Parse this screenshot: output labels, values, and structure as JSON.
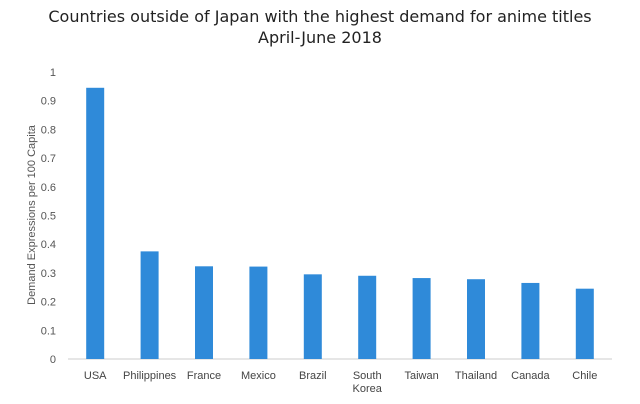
{
  "chart_data": {
    "type": "bar",
    "title": "Countries outside of Japan with the highest demand for anime titles",
    "subtitle": "April-June 2018",
    "xlabel": "",
    "ylabel": "Demand Expressions per 100 Capita",
    "ylim": [
      0,
      1
    ],
    "yticks": [
      "0",
      "0.1",
      "0.2",
      "0.3",
      "0.4",
      "0.5",
      "0.6",
      "0.7",
      "0.8",
      "0.9",
      "1"
    ],
    "categories": [
      "USA",
      "Philippines",
      "France",
      "Mexico",
      "Brazil",
      "South Korea",
      "Taiwan",
      "Thailand",
      "Canada",
      "Chile"
    ],
    "category_lines": [
      [
        "USA"
      ],
      [
        "Philippines"
      ],
      [
        "France"
      ],
      [
        "Mexico"
      ],
      [
        "Brazil"
      ],
      [
        "South",
        "Korea"
      ],
      [
        "Taiwan"
      ],
      [
        "Thailand"
      ],
      [
        "Canada"
      ],
      [
        "Chile"
      ]
    ],
    "values": [
      0.945,
      0.375,
      0.323,
      0.322,
      0.295,
      0.29,
      0.282,
      0.278,
      0.265,
      0.245
    ],
    "bar_color": "#2f8ad9",
    "grid": false,
    "legend": "none"
  }
}
